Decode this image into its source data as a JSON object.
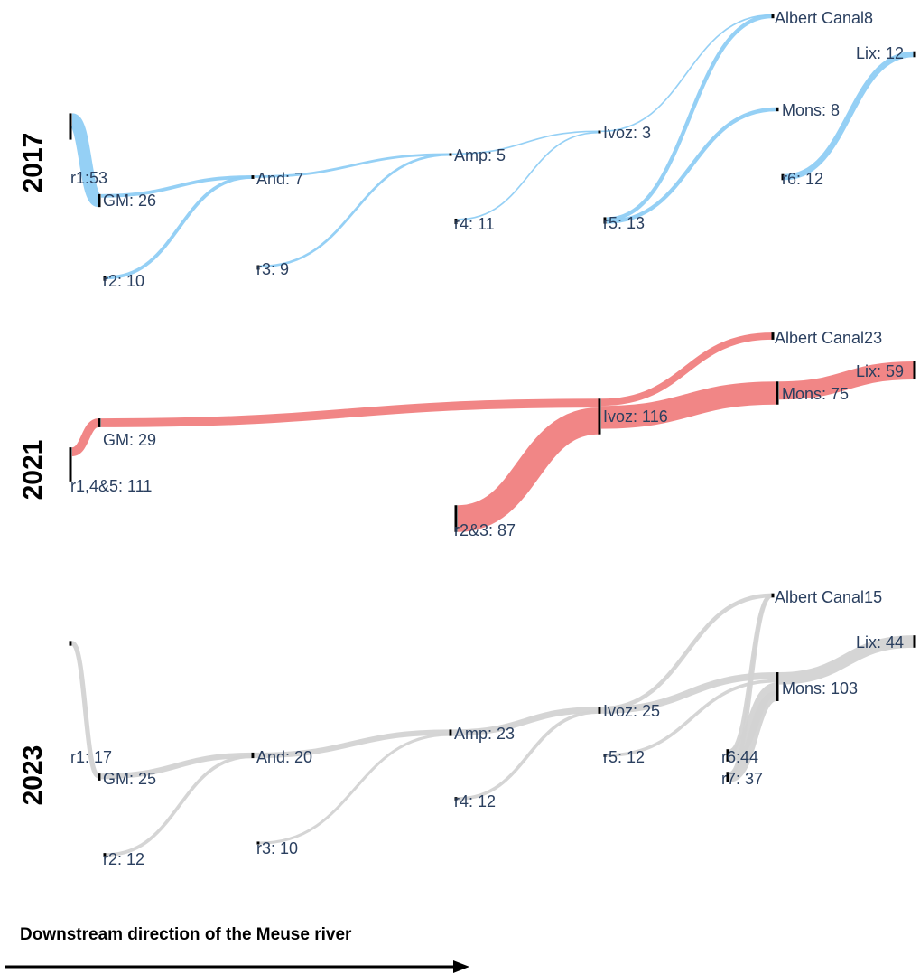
{
  "caption": "Downstream direction of the Meuse river",
  "colors": {
    "2017": "#8fcdf4",
    "2021": "#f08080",
    "2023": "#d3d3d3",
    "node": "#000000",
    "label": "#2a3f5f"
  },
  "panels": [
    {
      "year": "2017",
      "color": "#8fcdf4",
      "nodes": [
        {
          "id": "r1",
          "label": "r1:53",
          "value": 53
        },
        {
          "id": "GM",
          "label": "GM: 26",
          "value": 26
        },
        {
          "id": "r2",
          "label": "r2: 10",
          "value": 10
        },
        {
          "id": "And",
          "label": "And: 7",
          "value": 7
        },
        {
          "id": "r3",
          "label": "r3: 9",
          "value": 9
        },
        {
          "id": "Amp",
          "label": "Amp: 5",
          "value": 5
        },
        {
          "id": "r4",
          "label": "r4: 11",
          "value": 11
        },
        {
          "id": "Ivoz",
          "label": "Ivoz: 3",
          "value": 3
        },
        {
          "id": "r5",
          "label": "r5: 13",
          "value": 13
        },
        {
          "id": "Albert",
          "label": "Albert Canal8",
          "value": 8
        },
        {
          "id": "Mons",
          "label": "Mons: 8",
          "value": 8
        },
        {
          "id": "r6",
          "label": "r6: 12",
          "value": 12
        },
        {
          "id": "Lix",
          "label": "Lix: 12",
          "value": 12
        }
      ],
      "links": [
        {
          "source": "r1",
          "target": "GM"
        },
        {
          "source": "GM",
          "target": "And"
        },
        {
          "source": "r2",
          "target": "And"
        },
        {
          "source": "And",
          "target": "Amp"
        },
        {
          "source": "r3",
          "target": "Amp"
        },
        {
          "source": "Amp",
          "target": "Ivoz"
        },
        {
          "source": "r4",
          "target": "Ivoz"
        },
        {
          "source": "Ivoz",
          "target": "Albert"
        },
        {
          "source": "r5",
          "target": "Albert"
        },
        {
          "source": "r5",
          "target": "Mons"
        },
        {
          "source": "r6",
          "target": "Lix"
        }
      ]
    },
    {
      "year": "2021",
      "color": "#f08080",
      "nodes": [
        {
          "id": "r145",
          "label": "r1,4&5: 111",
          "value": 111
        },
        {
          "id": "GM",
          "label": "GM: 29",
          "value": 29
        },
        {
          "id": "r23",
          "label": "r2&3: 87",
          "value": 87
        },
        {
          "id": "Ivoz",
          "label": "Ivoz: 116",
          "value": 116
        },
        {
          "id": "Albert",
          "label": "Albert Canal23",
          "value": 23
        },
        {
          "id": "Mons",
          "label": "Mons: 75",
          "value": 75
        },
        {
          "id": "Lix",
          "label": "Lix: 59",
          "value": 59
        }
      ],
      "links": [
        {
          "source": "r145",
          "target": "GM"
        },
        {
          "source": "GM",
          "target": "Ivoz"
        },
        {
          "source": "r23",
          "target": "Ivoz"
        },
        {
          "source": "Ivoz",
          "target": "Albert"
        },
        {
          "source": "Ivoz",
          "target": "Mons"
        },
        {
          "source": "Mons",
          "target": "Lix"
        }
      ]
    },
    {
      "year": "2023",
      "color": "#d3d3d3",
      "nodes": [
        {
          "id": "r1",
          "label": "r1: 17",
          "value": 17
        },
        {
          "id": "GM",
          "label": "GM: 25",
          "value": 25
        },
        {
          "id": "r2",
          "label": "r2: 12",
          "value": 12
        },
        {
          "id": "And",
          "label": "And: 20",
          "value": 20
        },
        {
          "id": "r3",
          "label": "r3: 10",
          "value": 10
        },
        {
          "id": "Amp",
          "label": "Amp: 23",
          "value": 23
        },
        {
          "id": "r4",
          "label": "r4: 12",
          "value": 12
        },
        {
          "id": "Ivoz",
          "label": "Ivoz: 25",
          "value": 25
        },
        {
          "id": "r5",
          "label": "r5: 12",
          "value": 12
        },
        {
          "id": "r6",
          "label": "r6:44",
          "value": 44
        },
        {
          "id": "r7",
          "label": "r7: 37",
          "value": 37
        },
        {
          "id": "Albert",
          "label": "Albert Canal15",
          "value": 15
        },
        {
          "id": "Mons",
          "label": "Mons: 103",
          "value": 103
        },
        {
          "id": "Lix",
          "label": "Lix: 44",
          "value": 44
        }
      ],
      "links": [
        {
          "source": "r1",
          "target": "GM"
        },
        {
          "source": "GM",
          "target": "And"
        },
        {
          "source": "r2",
          "target": "And"
        },
        {
          "source": "And",
          "target": "Amp"
        },
        {
          "source": "r3",
          "target": "Amp"
        },
        {
          "source": "Amp",
          "target": "Ivoz"
        },
        {
          "source": "r4",
          "target": "Ivoz"
        },
        {
          "source": "Ivoz",
          "target": "Albert"
        },
        {
          "source": "Ivoz",
          "target": "Mons"
        },
        {
          "source": "r5",
          "target": "Mons"
        },
        {
          "source": "r6",
          "target": "Albert"
        },
        {
          "source": "r6",
          "target": "Mons"
        },
        {
          "source": "r7",
          "target": "Albert"
        },
        {
          "source": "r7",
          "target": "Mons"
        },
        {
          "source": "Mons",
          "target": "Lix"
        }
      ]
    }
  ]
}
